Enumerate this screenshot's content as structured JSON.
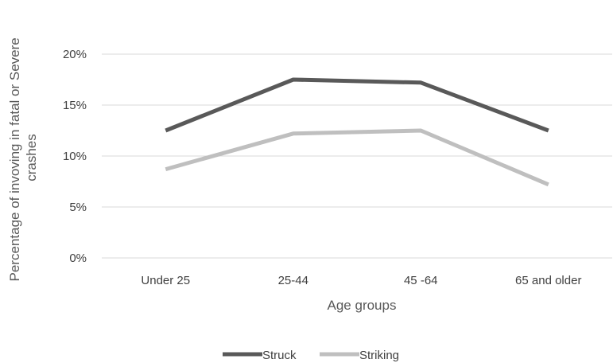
{
  "chart_data": {
    "type": "line",
    "title": "",
    "xlabel": "Age groups",
    "ylabel_lines": [
      "Percentage of invoving in fatal or Severe",
      "crashes"
    ],
    "categories": [
      "Under 25",
      "25-44",
      "45 -64",
      "65 and older"
    ],
    "y_ticks": [
      "0%",
      "5%",
      "10%",
      "15%",
      "20%"
    ],
    "ylim": [
      0,
      20
    ],
    "grid": true,
    "legend_position": "bottom",
    "series": [
      {
        "name": "Struck",
        "color": "#595959",
        "values": [
          12.5,
          17.5,
          17.2,
          12.5
        ]
      },
      {
        "name": "Striking",
        "color": "#bfbfbf",
        "values": [
          8.7,
          12.2,
          12.5,
          7.2
        ]
      }
    ]
  }
}
